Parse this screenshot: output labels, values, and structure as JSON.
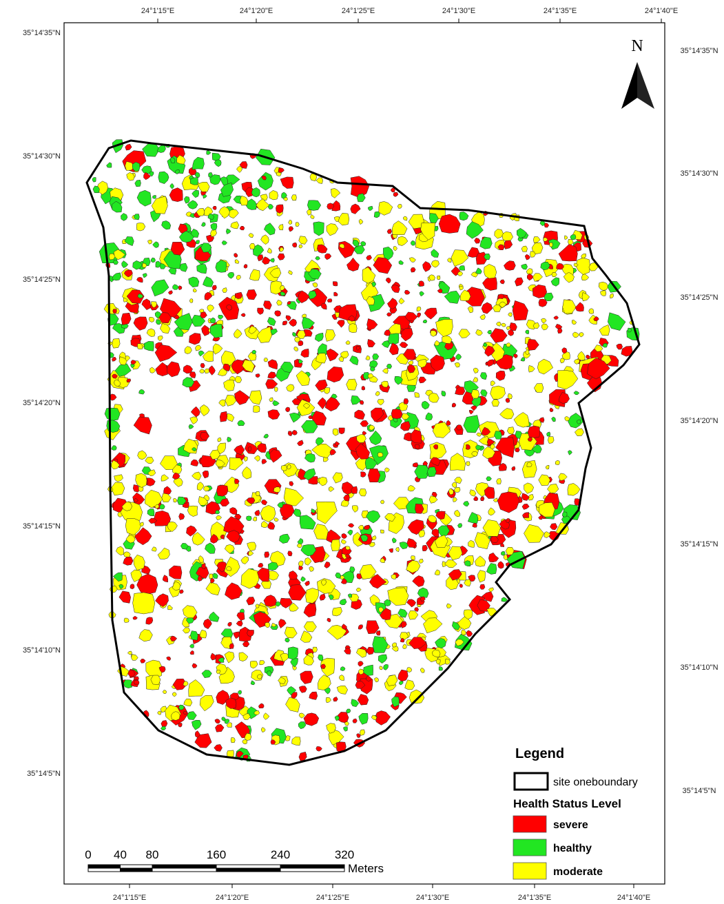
{
  "map": {
    "top_labels": [
      "24°1'15\"E",
      "24°1'20\"E",
      "24°1'25\"E",
      "24°1'30\"E",
      "24°1'35\"E",
      "24°1'40\"E"
    ],
    "bottom_labels": [
      "24°1'15\"E",
      "24°1'20\"E",
      "24°1'25\"E",
      "24°1'30\"E",
      "24°1'35\"E",
      "24°1'40\"E"
    ],
    "left_labels": [
      "35°14'35\"N",
      "35°14'30\"N",
      "35°14'25\"N",
      "35°14'20\"N",
      "35°14'15\"N",
      "35°14'10\"N",
      "35°14'5\"N"
    ],
    "right_labels": [
      "35°14'35\"N",
      "35°14'30\"N",
      "35°14'25\"N",
      "35°14'20\"N",
      "35°14'15\"N",
      "35°14'10\"N",
      "35°14'5\"N"
    ],
    "north": "N",
    "legend": {
      "title": "Legend",
      "boundary": "site oneboundary",
      "subtitle": "Health Status Level",
      "classes": [
        {
          "label": "severe",
          "color": "#ff0000"
        },
        {
          "label": "healthy",
          "color": "#22e622"
        },
        {
          "label": "moderate",
          "color": "#ffff00"
        }
      ]
    },
    "scale": {
      "ticks": [
        0,
        40,
        80,
        160,
        240,
        320
      ],
      "unit": "Meters"
    }
  }
}
